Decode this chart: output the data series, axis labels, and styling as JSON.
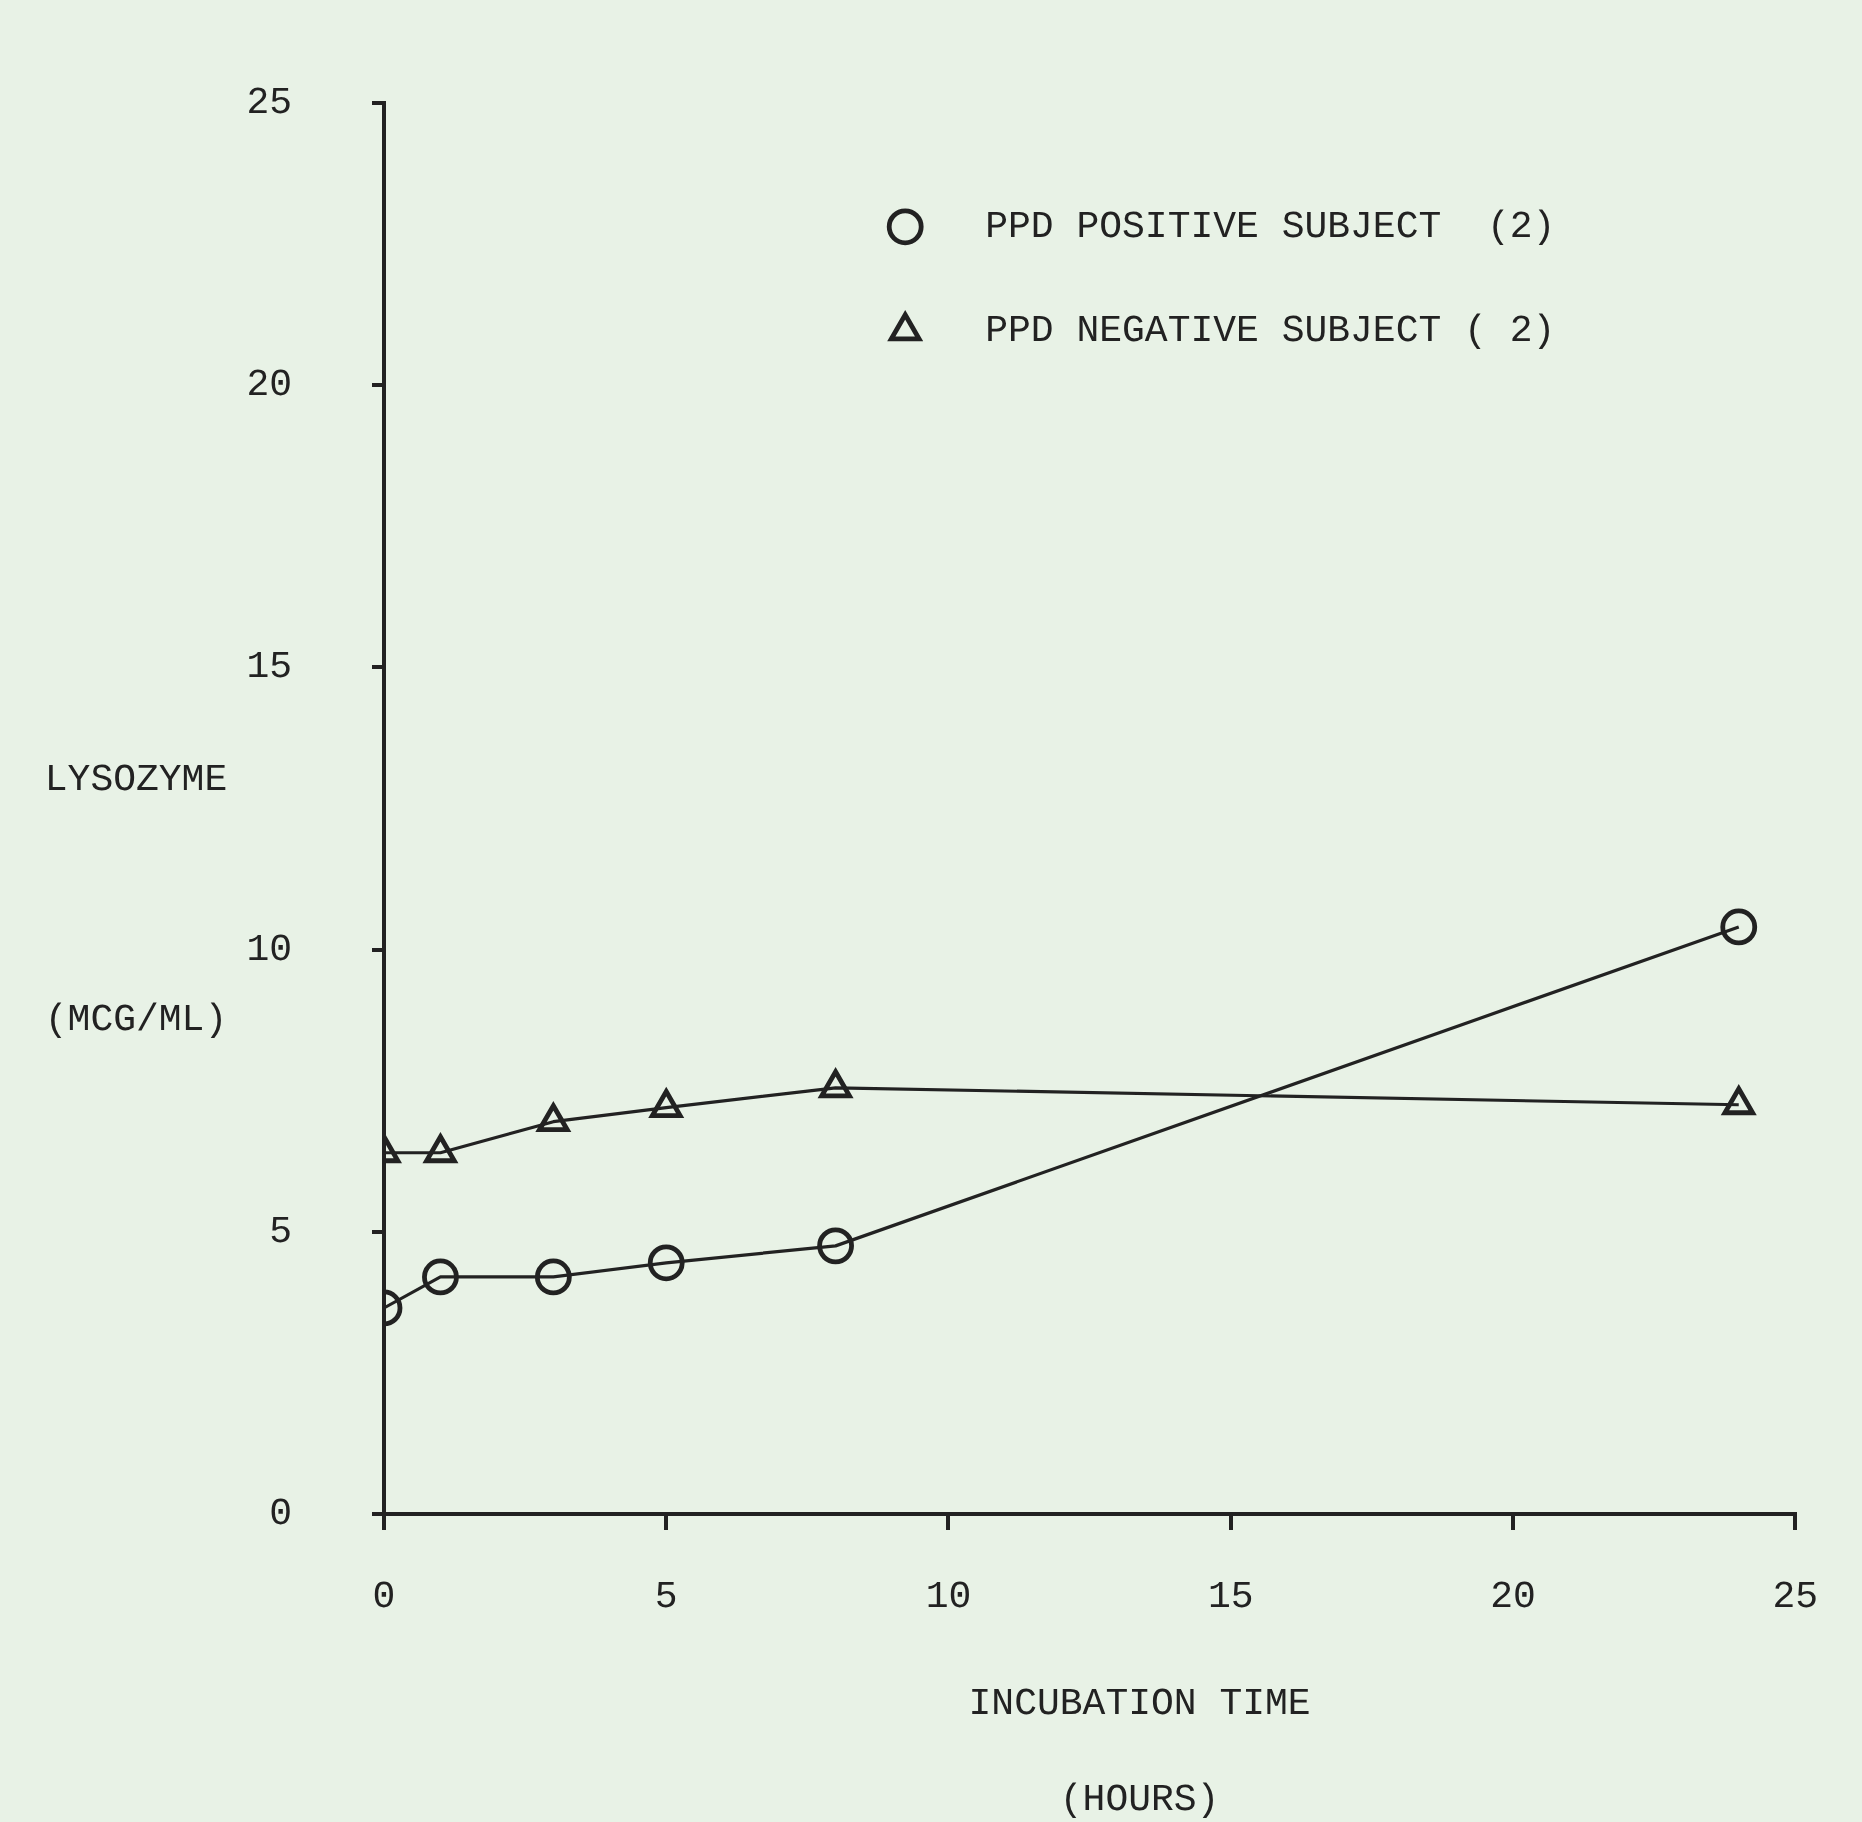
{
  "chart_data": {
    "type": "line",
    "xlabel": "INCUBATION TIME\n(HOURS)",
    "ylabel": "LYSOZYME\n(MCG/ML)",
    "xlim": [
      0,
      25
    ],
    "xticks": [
      0,
      5,
      10,
      15,
      20,
      25
    ],
    "ylim": [
      0,
      25
    ],
    "yticks": [
      0,
      5,
      10,
      15,
      20,
      25
    ],
    "grid": false,
    "legend": "top right",
    "series": [
      {
        "name": "PPD POSITIVE SUBJECT  (2)",
        "color": "#222222",
        "marker": "circle",
        "x": [
          0,
          1,
          3,
          5,
          8,
          24
        ],
        "values": [
          3.65,
          4.2,
          4.2,
          4.45,
          4.75,
          10.4
        ]
      },
      {
        "name": "PPD NEGATIVE SUBJECT ( 2)",
        "color": "#222222",
        "marker": "triangle",
        "x": [
          0,
          1,
          3,
          5,
          8,
          24
        ],
        "values": [
          6.4,
          6.4,
          6.95,
          7.2,
          7.55,
          7.25
        ]
      }
    ]
  }
}
